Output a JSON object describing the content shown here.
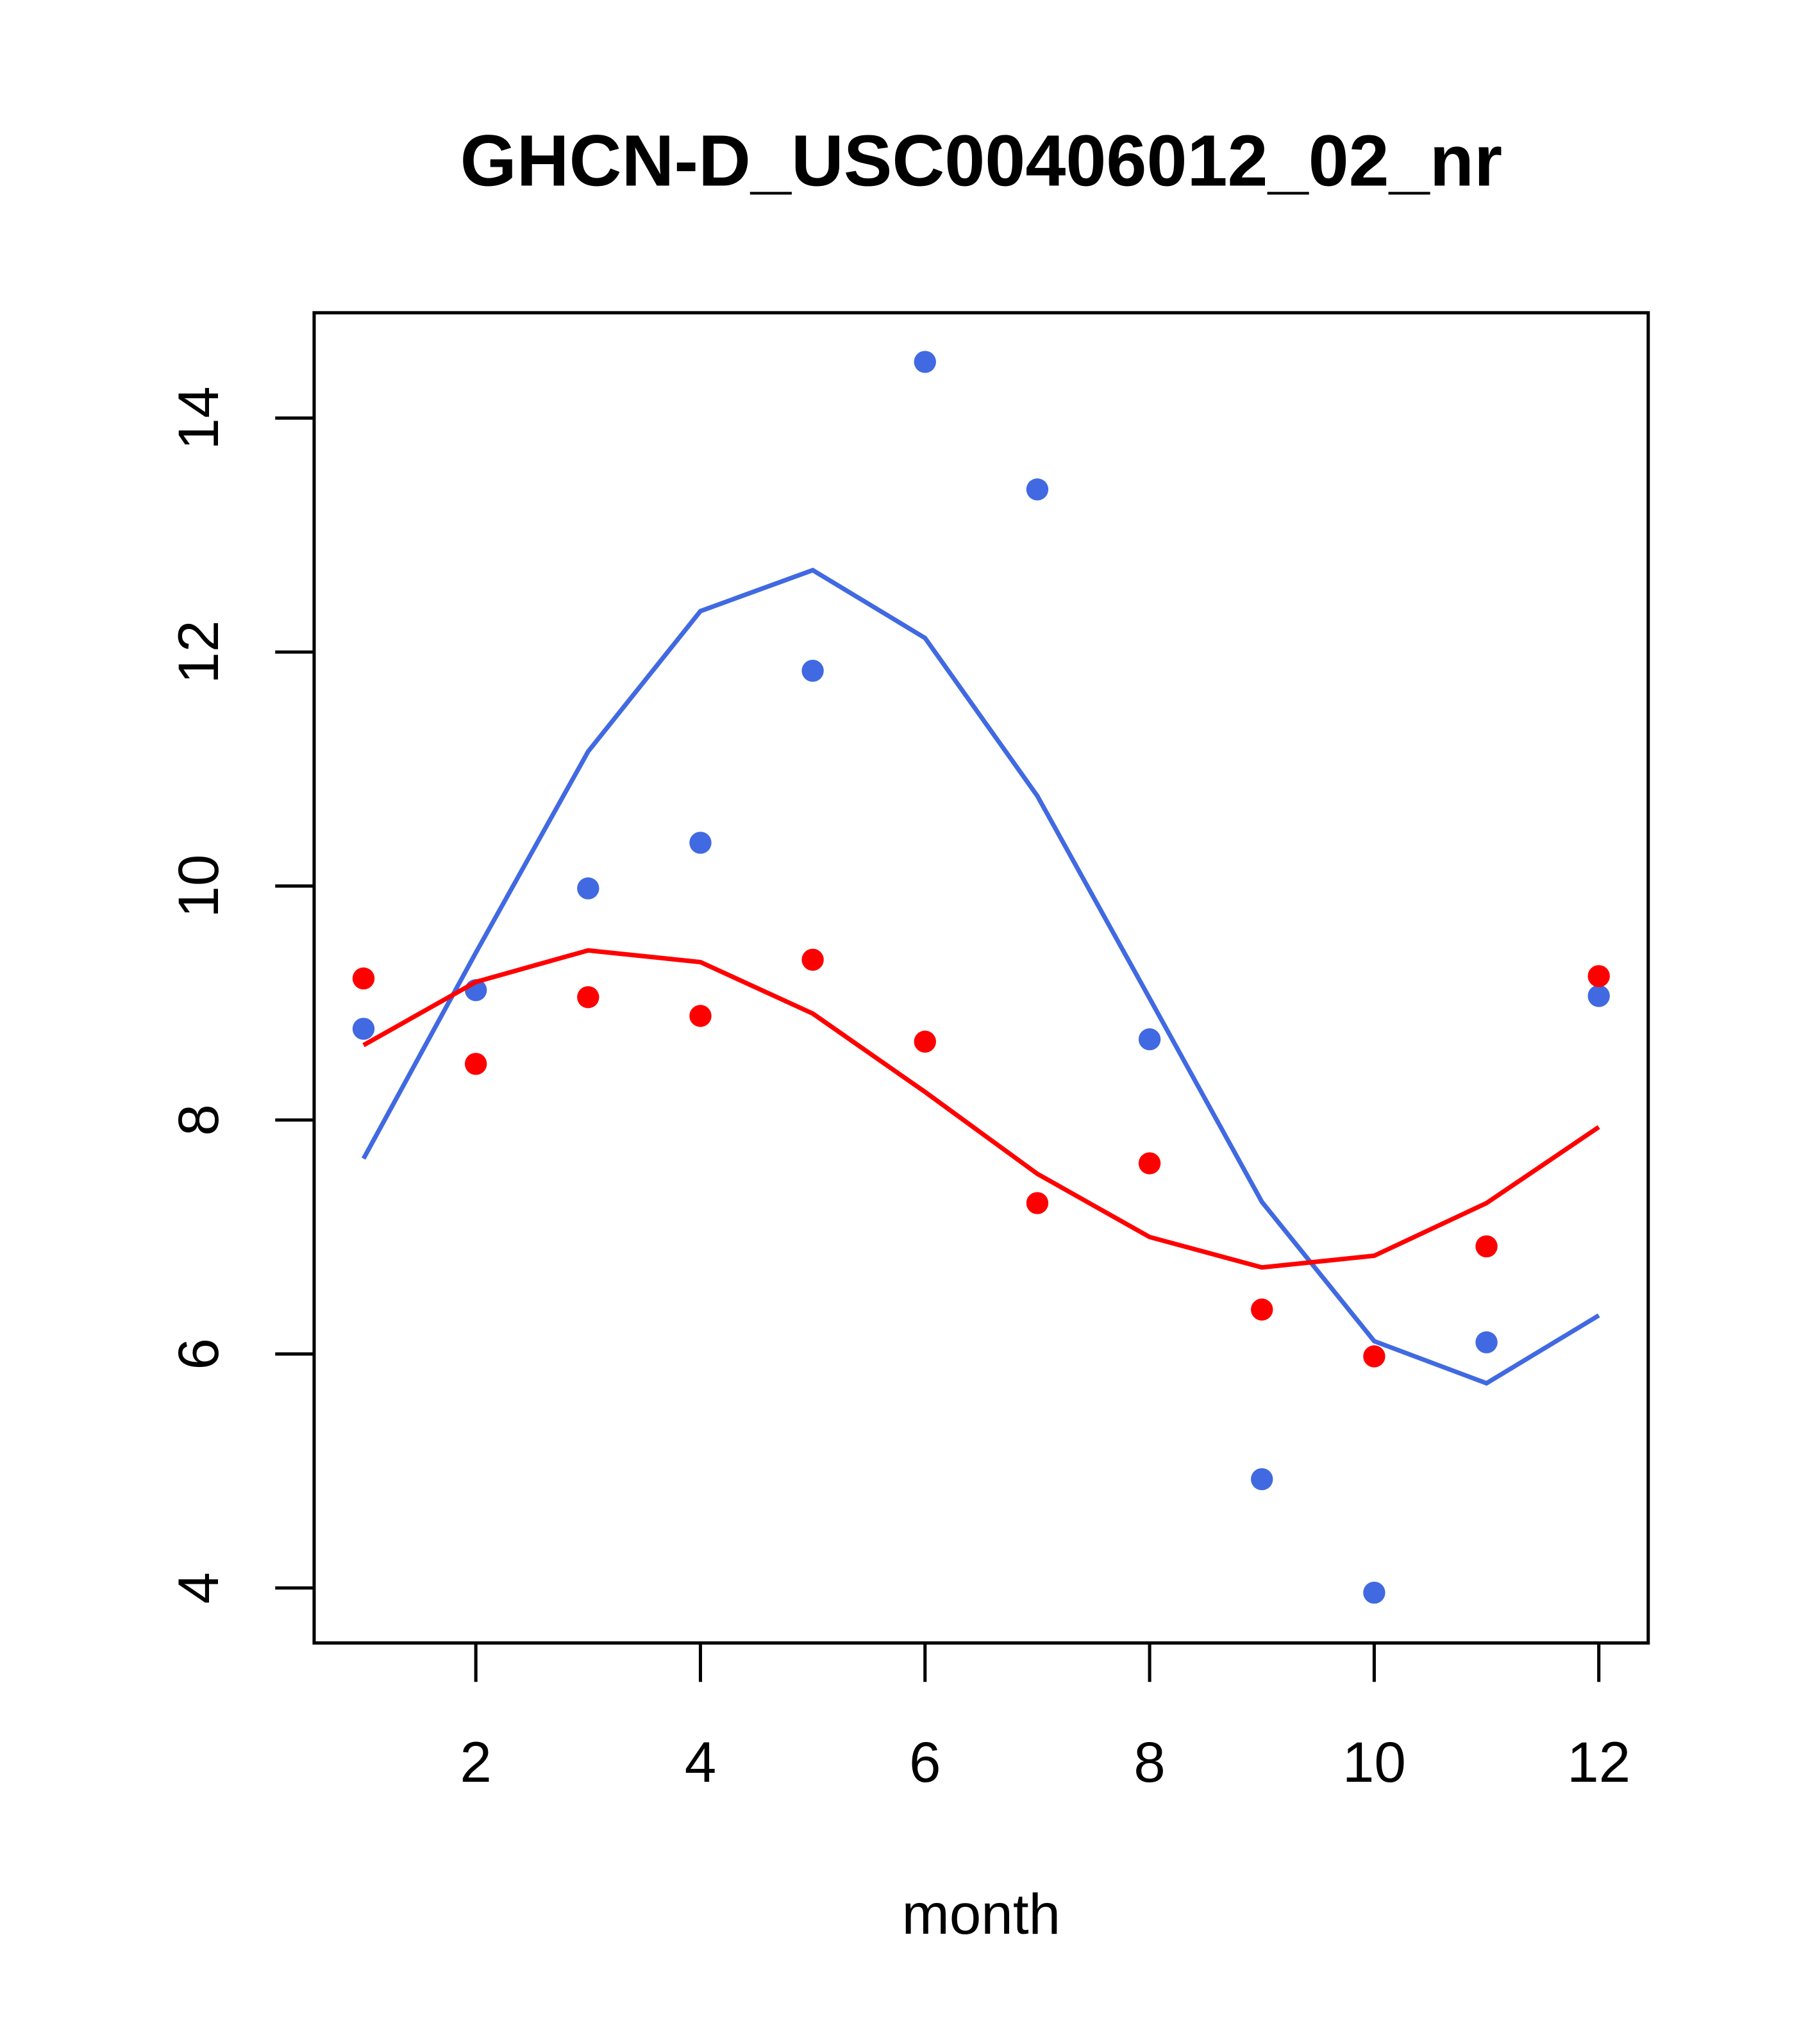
{
  "chart_data": {
    "type": "scatter",
    "title": "GHCN-D_USC00406012_02_nr",
    "xlabel": "month",
    "ylabel": "",
    "xlim": [
      0.56,
      12.44
    ],
    "ylim": [
      3.53,
      14.9
    ],
    "x_ticks": [
      2,
      4,
      6,
      8,
      10,
      12
    ],
    "y_ticks": [
      4,
      6,
      8,
      10,
      12,
      14
    ],
    "grid": false,
    "x": [
      1,
      2,
      3,
      4,
      5,
      6,
      7,
      8,
      9,
      10,
      11,
      12
    ],
    "series": [
      {
        "name": "blue points",
        "kind": "points",
        "color": "#4169E1",
        "values": [
          8.78,
          9.11,
          9.98,
          10.37,
          11.84,
          14.48,
          13.39,
          8.69,
          4.93,
          3.96,
          6.1,
          9.06
        ]
      },
      {
        "name": "red points",
        "kind": "points",
        "color": "#FF0000",
        "values": [
          9.21,
          8.48,
          9.05,
          8.89,
          9.37,
          8.67,
          7.29,
          7.63,
          6.38,
          5.98,
          6.92,
          9.23
        ]
      },
      {
        "name": "blue line",
        "kind": "line",
        "color": "#4169E1",
        "values": [
          7.67,
          9.43,
          11.15,
          12.35,
          12.7,
          12.12,
          10.77,
          9.04,
          7.3,
          6.11,
          5.75,
          6.33
        ]
      },
      {
        "name": "red line",
        "kind": "line",
        "color": "#FF0000",
        "values": [
          8.64,
          9.18,
          9.45,
          9.35,
          8.91,
          8.24,
          7.54,
          7.0,
          6.74,
          6.84,
          7.29,
          7.94
        ]
      }
    ]
  }
}
